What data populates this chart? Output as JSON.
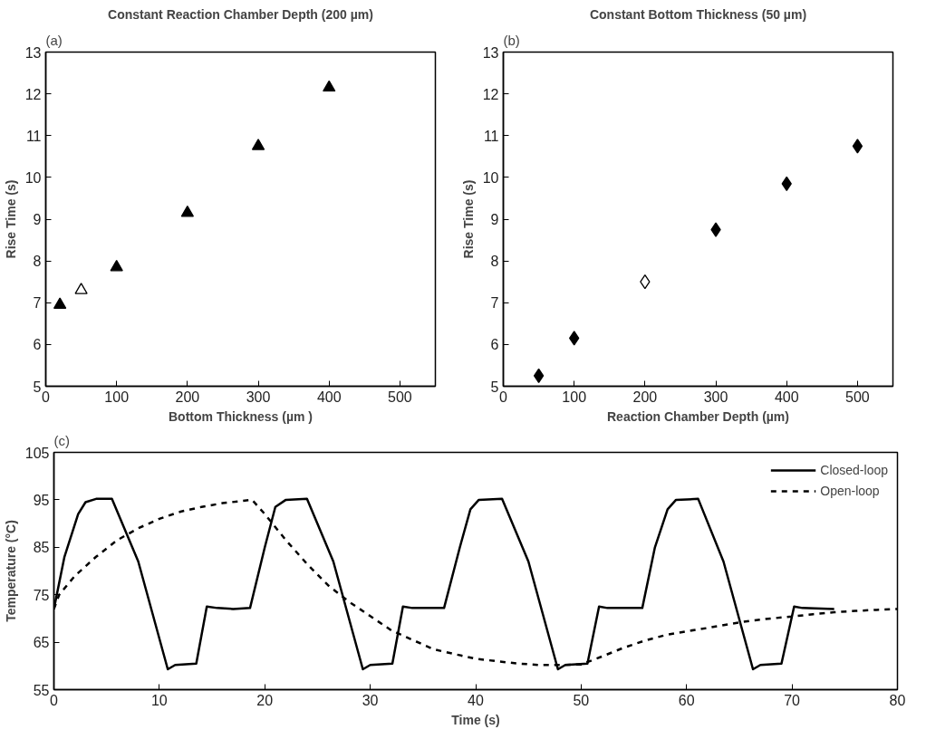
{
  "chart_data": [
    {
      "type": "scatter",
      "annotations": [
        "(a)"
      ],
      "title": "Constant Reaction Chamber Depth (200 µm)",
      "xlabel": "Bottom Thickness (µm )",
      "ylabel": "Rise Time (s)",
      "xlim": [
        0,
        550
      ],
      "xticks": [
        0,
        100,
        200,
        300,
        400,
        500
      ],
      "ylim": [
        5,
        13
      ],
      "yticks": [
        5,
        6,
        7,
        8,
        9,
        10,
        11,
        12,
        13
      ],
      "grid": false,
      "marker": "triangle",
      "series": [
        {
          "color": "#000000",
          "x": [
            20,
            100,
            200,
            300,
            400
          ],
          "values": [
            6.95,
            7.85,
            9.15,
            10.75,
            12.15
          ]
        },
        {
          "color": "#ffffff",
          "x": [
            50
          ],
          "values": [
            7.3
          ]
        }
      ]
    },
    {
      "type": "scatter",
      "annotations": [
        "(b)"
      ],
      "title": "Constant Bottom Thickness (50 µm)",
      "xlabel": "Reaction Chamber Depth (µm)",
      "ylabel": "Rise Time (s)",
      "xlim": [
        0,
        550
      ],
      "xticks": [
        0,
        100,
        200,
        300,
        400,
        500
      ],
      "ylim": [
        5,
        13
      ],
      "yticks": [
        5,
        6,
        7,
        8,
        9,
        10,
        11,
        12,
        13
      ],
      "grid": false,
      "marker": "diamond",
      "series": [
        {
          "color": "#000000",
          "x": [
            50,
            100,
            300,
            400,
            500
          ],
          "values": [
            5.25,
            6.15,
            8.75,
            9.85,
            10.75
          ]
        },
        {
          "color": "#ffffff",
          "x": [
            200
          ],
          "values": [
            7.5
          ]
        }
      ]
    },
    {
      "type": "line",
      "annotations": [
        "(c)"
      ],
      "xlabel": "Time (s)",
      "ylabel": "Temperature (°C)",
      "xlim": [
        0,
        80
      ],
      "xticks": [
        0,
        10,
        20,
        30,
        40,
        50,
        60,
        70,
        80
      ],
      "ylim": [
        55,
        105
      ],
      "yticks": [
        55,
        65,
        75,
        85,
        95,
        105
      ],
      "grid": false,
      "legend": "top right",
      "series": [
        {
          "name": "Closed-loop",
          "color": "#000000",
          "line_style": "solid",
          "x": [
            0,
            1,
            2.3,
            3,
            4,
            5.5,
            8,
            10.8,
            11.5,
            13.5,
            14.5,
            15.5,
            17,
            18.6,
            20,
            21,
            22,
            24,
            26.5,
            29.3,
            30,
            32.1,
            33.1,
            34,
            37,
            38.5,
            39.5,
            40.3,
            42.5,
            45,
            47.8,
            48.5,
            50.6,
            51.7,
            52.5,
            55.8,
            57,
            58.2,
            59,
            61.1,
            63.5,
            66.3,
            67,
            69,
            70.2,
            71,
            74
          ],
          "values": [
            72,
            83,
            92,
            94.5,
            95.2,
            95.2,
            82,
            59.3,
            60.2,
            60.5,
            72.5,
            72.2,
            72,
            72.2,
            85,
            93.5,
            95,
            95.2,
            82,
            59.3,
            60.2,
            60.5,
            72.5,
            72.2,
            72.2,
            85,
            93,
            95,
            95.2,
            82,
            59.3,
            60.2,
            60.5,
            72.5,
            72.2,
            72.2,
            85,
            93,
            95,
            95.2,
            82,
            59.3,
            60.2,
            60.5,
            72.5,
            72.2,
            72
          ]
        },
        {
          "name": "Open-loop",
          "color": "#000000",
          "line_style": "dashed",
          "x": [
            0,
            0.5,
            2,
            4,
            6,
            8,
            10,
            12,
            14,
            16,
            18.8,
            20,
            22,
            24,
            26,
            28,
            30,
            32,
            34,
            36,
            38,
            40,
            42,
            44,
            46,
            48,
            50,
            52,
            54,
            56,
            58,
            60,
            62,
            64,
            66,
            68,
            70,
            72,
            74,
            76,
            78,
            80
          ],
          "values": [
            72,
            75,
            79,
            83,
            86.5,
            89,
            91,
            92.5,
            93.5,
            94.3,
            95,
            92,
            86.5,
            81.5,
            77,
            73.5,
            70.5,
            67.5,
            65.5,
            63.5,
            62.5,
            61.5,
            61,
            60.5,
            60.2,
            60.2,
            60.3,
            62,
            63.8,
            65.3,
            66.5,
            67.3,
            68,
            68.8,
            69.5,
            70,
            70.4,
            70.9,
            71.3,
            71.6,
            71.8,
            72
          ]
        }
      ]
    }
  ]
}
